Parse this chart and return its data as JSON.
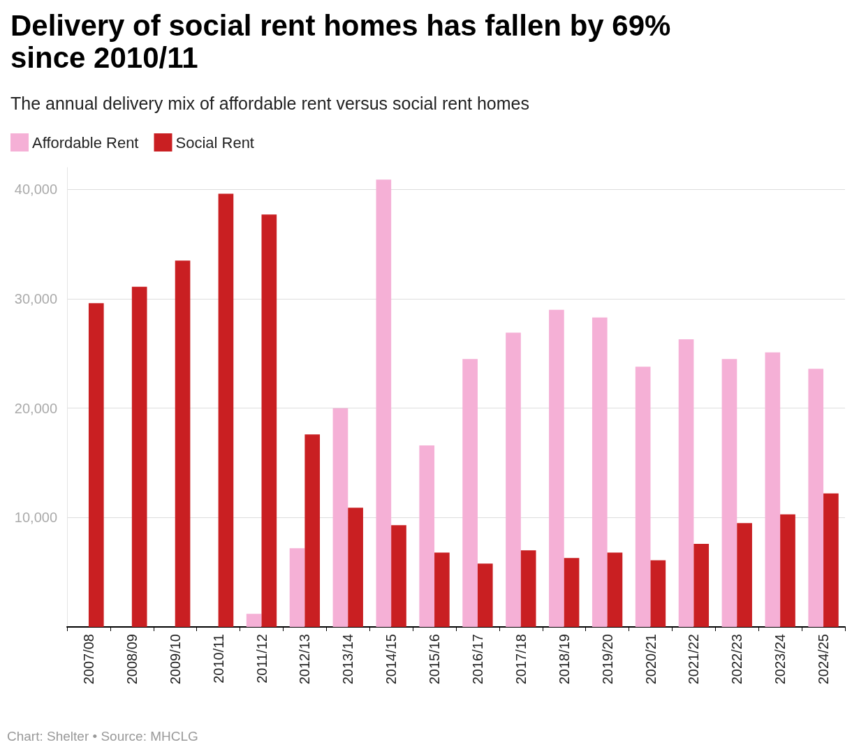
{
  "chart_data": {
    "type": "bar",
    "title": "Delivery of social rent homes has fallen by 69% since 2010/11",
    "subtitle": "The annual delivery mix of affordable rent versus social rent homes",
    "categories": [
      "2007/08",
      "2008/09",
      "2009/10",
      "2010/11",
      "2011/12",
      "2012/13",
      "2013/14",
      "2014/15",
      "2015/16",
      "2016/17",
      "2017/18",
      "2018/19",
      "2019/20",
      "2020/21",
      "2021/22",
      "2022/23",
      "2023/24",
      "2024/25"
    ],
    "series": [
      {
        "name": "Affordable Rent",
        "color": "#f5b0d6",
        "values": [
          null,
          null,
          null,
          null,
          1200,
          7200,
          20000,
          40900,
          16600,
          24500,
          26900,
          29000,
          28300,
          23800,
          26300,
          24500,
          25100,
          23600
        ]
      },
      {
        "name": "Social Rent",
        "color": "#c91f22",
        "values": [
          29600,
          31100,
          33500,
          39600,
          37700,
          17600,
          10900,
          9300,
          6800,
          5800,
          7000,
          6300,
          6800,
          6100,
          7600,
          9500,
          10300,
          12200
        ]
      }
    ],
    "ylim": [
      0,
      42000
    ],
    "yticks": [
      {
        "value": 10000,
        "label": "10,000"
      },
      {
        "value": 20000,
        "label": "20,000"
      },
      {
        "value": 30000,
        "label": "30,000"
      },
      {
        "value": 40000,
        "label": "40,000"
      }
    ],
    "grid": "y",
    "legend": "top left",
    "annotations": [
      "Chart: Shelter • Source: MHCLG"
    ]
  }
}
